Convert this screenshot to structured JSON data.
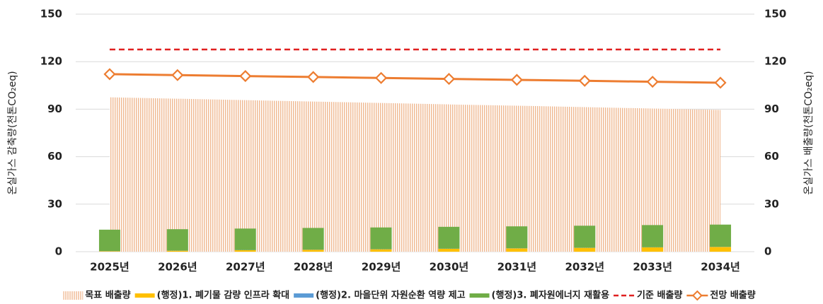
{
  "chart_data": {
    "type": "combo",
    "categories": [
      "2025년",
      "2026년",
      "2027년",
      "2028년",
      "2029년",
      "2030년",
      "2031년",
      "2032년",
      "2033년",
      "2034년"
    ],
    "ylabel": "온실가스 감축량(천톤CO₂eq)",
    "y2label": "온실가스 배출량(천톤CO₂eq)",
    "ylim": [
      0,
      150
    ],
    "yticks": [
      0,
      30,
      60,
      90,
      120,
      150
    ],
    "y2lim": [
      0,
      150
    ],
    "y2ticks": [
      0,
      30,
      60,
      90,
      120,
      150
    ],
    "grid": true,
    "legend": "bottom",
    "series": [
      {
        "name": "목표 배출량",
        "type": "area",
        "axis": "y2",
        "color": "#f4c7a6",
        "values": [
          97.5,
          96.6,
          95.7,
          94.8,
          93.9,
          93.0,
          92.2,
          91.3,
          90.4,
          89.5
        ]
      },
      {
        "name": "(행정)1. 폐기물 감량 인프라 확대",
        "type": "bar",
        "color": "#ffc000",
        "values": [
          0.3,
          0.6,
          0.9,
          1.2,
          1.5,
          1.8,
          2.1,
          2.4,
          2.7,
          3.0
        ]
      },
      {
        "name": "(행정)2. 마을단위 자원순환 역량 제고",
        "type": "bar",
        "color": "#5b9bd5",
        "values": [
          0.1,
          0.1,
          0.1,
          0.1,
          0.1,
          0.1,
          0.1,
          0.1,
          0.1,
          0.1
        ]
      },
      {
        "name": "(행정)3. 폐자원에너지 재활용",
        "type": "bar",
        "color": "#70ad47",
        "values": [
          13.5,
          13.5,
          13.6,
          13.7,
          13.7,
          13.8,
          13.8,
          13.9,
          14.0,
          14.0
        ]
      },
      {
        "name": "기준 배출량",
        "type": "line",
        "axis": "y2",
        "style": "dashed",
        "color": "#e02020",
        "values": [
          127.7,
          127.7,
          127.7,
          127.7,
          127.7,
          127.7,
          127.7,
          127.7,
          127.7,
          127.7
        ]
      },
      {
        "name": "전망 배출량",
        "type": "line",
        "axis": "y2",
        "marker": "diamond",
        "color": "#ed7d31",
        "values": [
          112.1,
          111.5,
          110.9,
          110.3,
          109.7,
          109.1,
          108.5,
          107.9,
          107.3,
          106.7
        ]
      }
    ]
  }
}
